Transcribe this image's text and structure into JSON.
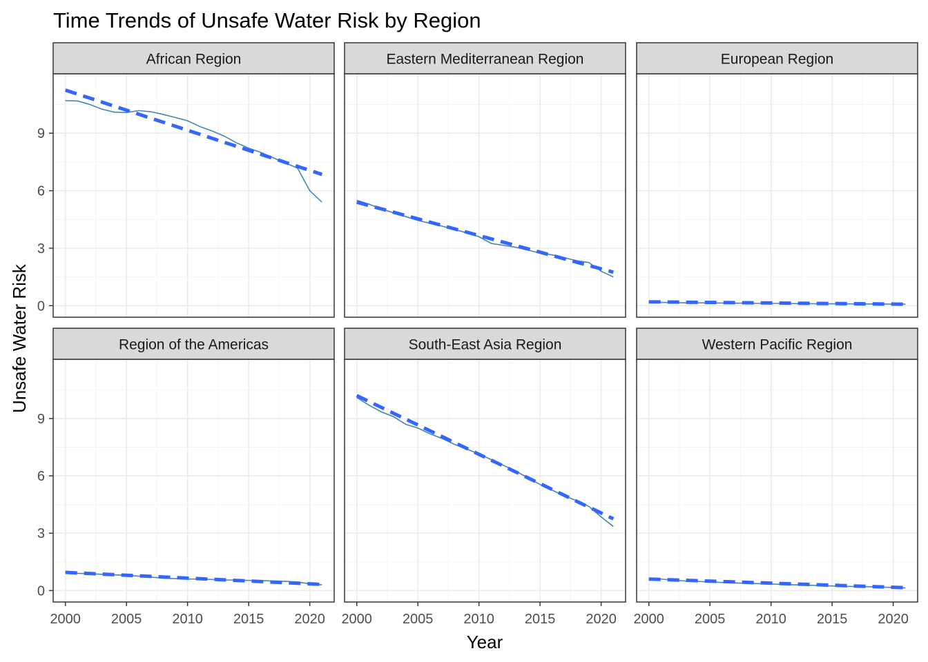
{
  "chart_data": {
    "type": "line",
    "title": "Time Trends of Unsafe Water Risk by Region",
    "xlabel": "Year",
    "ylabel": "Unsafe Water Risk",
    "xlim": [
      1999,
      2022
    ],
    "ylim": [
      -0.6,
      12.1
    ],
    "x_ticks": [
      2000,
      2005,
      2010,
      2015,
      2020
    ],
    "y_ticks": [
      0,
      3,
      6,
      9
    ],
    "grid": true,
    "facet_layout": "2 rows x 3 columns, shared axes",
    "colors": {
      "observed": "#4682b4",
      "trend": "#3366ff",
      "strip_fill": "#d9d9d9",
      "grid_major": "#ebebeb",
      "grid_minor": "#f5f5f5",
      "panel_border": "#333333"
    },
    "series_styles": {
      "observed": "solid thin line",
      "trend": "dashed thick linear fit"
    },
    "x": [
      2000,
      2001,
      2002,
      2003,
      2004,
      2005,
      2006,
      2007,
      2008,
      2009,
      2010,
      2011,
      2012,
      2013,
      2014,
      2015,
      2016,
      2017,
      2018,
      2019,
      2020,
      2021
    ],
    "panels": [
      {
        "region": "African Region",
        "values": [
          10.7,
          10.68,
          10.5,
          10.25,
          10.1,
          10.08,
          10.18,
          10.12,
          9.98,
          9.82,
          9.65,
          9.35,
          9.12,
          8.85,
          8.5,
          8.22,
          8.0,
          7.72,
          7.45,
          7.18,
          6.0,
          5.4
        ],
        "trend": [
          11.25,
          6.85
        ]
      },
      {
        "region": "Eastern Mediterranean Region",
        "values": [
          5.5,
          5.3,
          5.05,
          4.85,
          4.65,
          4.45,
          4.3,
          4.15,
          3.98,
          3.8,
          3.6,
          3.25,
          3.15,
          3.05,
          2.9,
          2.75,
          2.65,
          2.5,
          2.35,
          2.25,
          1.8,
          1.5
        ],
        "trend": [
          5.4,
          1.75
        ]
      },
      {
        "region": "European Region",
        "values": [
          0.18,
          0.17,
          0.16,
          0.15,
          0.15,
          0.14,
          0.14,
          0.13,
          0.13,
          0.12,
          0.12,
          0.12,
          0.11,
          0.11,
          0.1,
          0.1,
          0.1,
          0.09,
          0.09,
          0.09,
          0.08,
          0.08
        ],
        "trend": [
          0.2,
          0.08
        ]
      },
      {
        "region": "Region of the Americas",
        "values": [
          0.95,
          0.9,
          0.88,
          0.85,
          0.82,
          0.8,
          0.75,
          0.7,
          0.65,
          0.62,
          0.6,
          0.6,
          0.58,
          0.55,
          0.55,
          0.53,
          0.52,
          0.5,
          0.48,
          0.45,
          0.35,
          0.3
        ],
        "trend": [
          0.95,
          0.32
        ]
      },
      {
        "region": "South-East Asia Region",
        "values": [
          10.1,
          9.7,
          9.35,
          9.1,
          8.7,
          8.5,
          8.2,
          7.95,
          7.65,
          7.4,
          7.15,
          6.85,
          6.55,
          6.25,
          5.9,
          5.55,
          5.25,
          4.95,
          4.7,
          4.4,
          3.85,
          3.35
        ],
        "trend": [
          10.2,
          3.75
        ]
      },
      {
        "region": "Western Pacific Region",
        "values": [
          0.65,
          0.6,
          0.55,
          0.5,
          0.48,
          0.45,
          0.42,
          0.4,
          0.38,
          0.36,
          0.34,
          0.32,
          0.3,
          0.28,
          0.26,
          0.24,
          0.22,
          0.21,
          0.2,
          0.18,
          0.16,
          0.14
        ],
        "trend": [
          0.6,
          0.15
        ]
      }
    ]
  }
}
